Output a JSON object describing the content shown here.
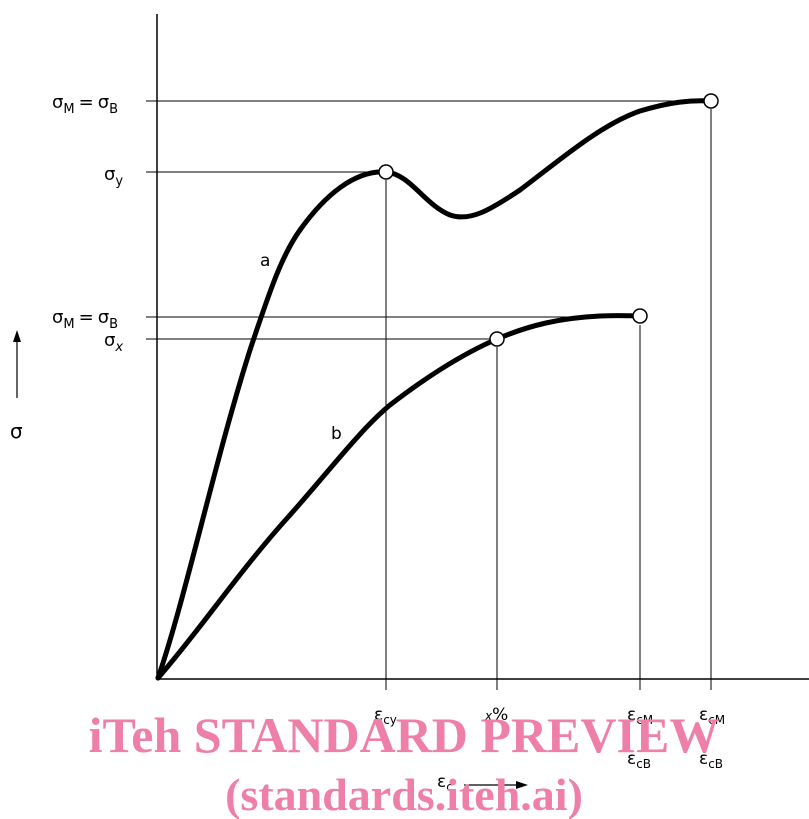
{
  "diagram": {
    "type": "stress-strain curves",
    "y_axis_symbol": "σ",
    "x_axis_symbol": "ε",
    "x_axis_subscript": "c",
    "curves": [
      {
        "label": "a"
      },
      {
        "label": "b"
      }
    ],
    "y_labels": {
      "upper_max": {
        "left": "σ",
        "left_sub": "M",
        "eq": "=",
        "right": "σ",
        "right_sub": "B"
      },
      "yield": {
        "sym": "σ",
        "sub": "y"
      },
      "lower_max": {
        "left": "σ",
        "left_sub": "M",
        "eq": "=",
        "right": "σ",
        "right_sub": "B"
      },
      "x": {
        "sym": "σ",
        "sub": "x"
      }
    },
    "x_labels": {
      "cy": {
        "sym": "ε",
        "sub": "cy"
      },
      "xpct": {
        "pre": "x",
        "sym": "%"
      },
      "b_top": {
        "sym": "ε",
        "sub": "cM"
      },
      "b_bottom": {
        "sym": "ε",
        "sub": "cB"
      },
      "a_top": {
        "sym": "ε",
        "sub": "cM"
      },
      "a_bottom": {
        "sym": "ε",
        "sub": "cB"
      }
    }
  },
  "watermark": {
    "line1": "iTeh STANDARD PREVIEW",
    "line2": "(standards.iteh.ai)",
    "color": "#ee7fa8"
  }
}
